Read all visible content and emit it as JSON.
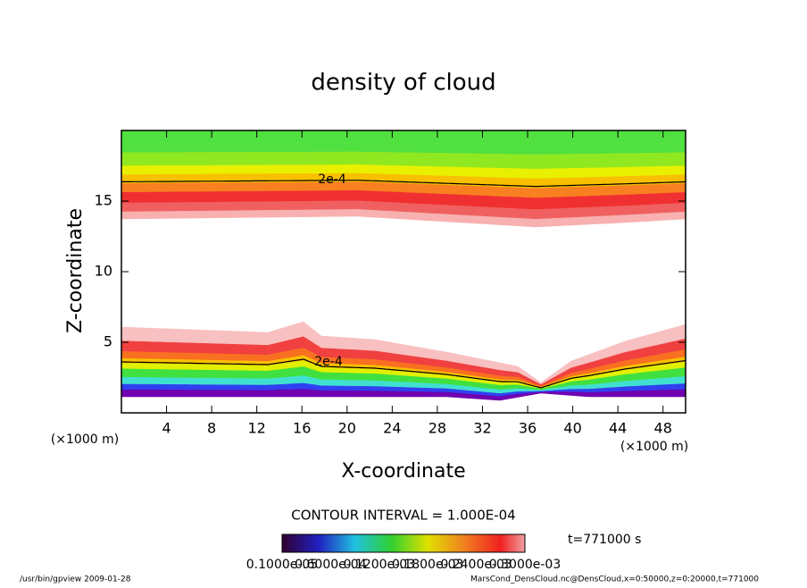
{
  "chart_data": {
    "type": "contour",
    "title": "density of cloud",
    "x_label": "X-coordinate",
    "y_label": "Z-coordinate",
    "x_unit": "(×1000 m)",
    "y_unit": "(×1000 m)",
    "xlim": [
      0,
      50
    ],
    "ylim": [
      0,
      20
    ],
    "xticks": [
      4,
      8,
      12,
      16,
      20,
      24,
      28,
      32,
      36,
      40,
      44,
      48
    ],
    "yticks": [
      5,
      10,
      15
    ],
    "contour_labels": [
      "2e-4",
      "2e-4"
    ],
    "contour_interval": "CONTOUR INTERVAL = 1.000E-04",
    "time": "t=771000 s",
    "colorbar_labels": [
      "0.1000e-05",
      "0.6000e-04",
      "0.1200e-03",
      "0.1800e-03",
      "0.2400e-03",
      "0.3000e-03"
    ]
  },
  "footer": {
    "left": "/usr/bin/gpview  2009-01-28",
    "right": "MarsCond_DensCloud.nc@DensCloud,x=0:50000,z=0:20000,t=771000"
  }
}
